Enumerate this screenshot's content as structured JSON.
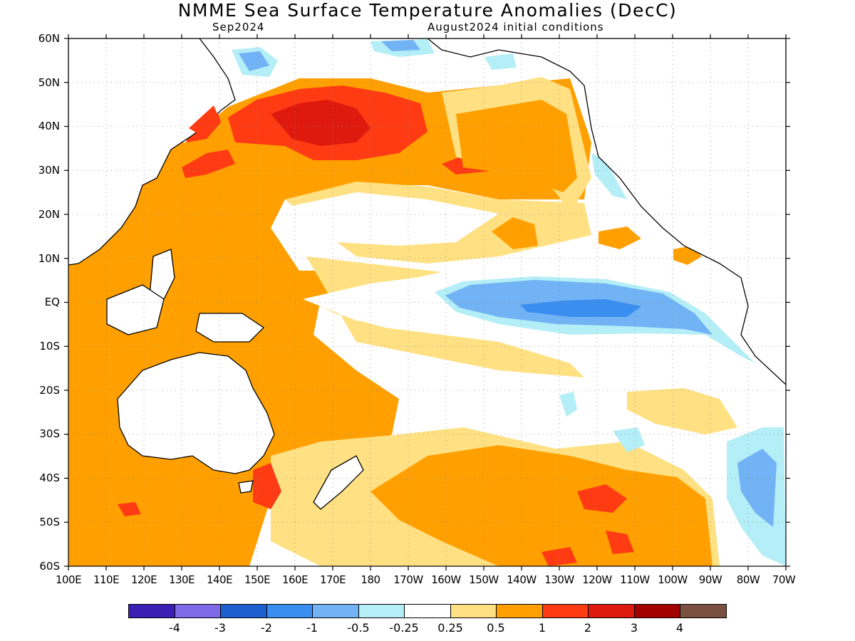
{
  "title": "NMME Sea Surface Temperature Anomalies (DecC)",
  "subtitle_left": "Sep2024",
  "subtitle_right": "August2024 initial conditions",
  "lat_labels": [
    "60N",
    "50N",
    "40N",
    "30N",
    "20N",
    "10N",
    "EQ",
    "10S",
    "20S",
    "30S",
    "40S",
    "50S",
    "60S"
  ],
  "lon_labels": [
    "100E",
    "110E",
    "120E",
    "130E",
    "140E",
    "150E",
    "160E",
    "170E",
    "180",
    "170W",
    "160W",
    "150W",
    "140W",
    "130W",
    "120W",
    "110W",
    "100W",
    "90W",
    "80W",
    "70W"
  ],
  "colorbar": {
    "colors": [
      "#3a1fb5",
      "#7f6ae8",
      "#1e5fcf",
      "#3a8ef0",
      "#72b3f5",
      "#b4eef7",
      "#ffffff",
      "#ffe082",
      "#ffa000",
      "#ff3b14",
      "#dd1a0d",
      "#a30000",
      "#7a5040"
    ],
    "labels": [
      "-4",
      "-3",
      "-2",
      "-1",
      "-0.5",
      "-0.25",
      "0.25",
      "0.5",
      "1",
      "2",
      "3",
      "4"
    ]
  },
  "map_colors": {
    "land": "#ffffff",
    "ocean_neutral": "#ffffff",
    "weak_pos": "#ffe082",
    "mod_pos": "#ffa000",
    "strong_pos": "#ff3b14",
    "very_strong_pos": "#dd1a0d",
    "weak_neg": "#b4eef7",
    "mod_neg": "#72b3f5",
    "strong_neg": "#3a8ef0"
  }
}
